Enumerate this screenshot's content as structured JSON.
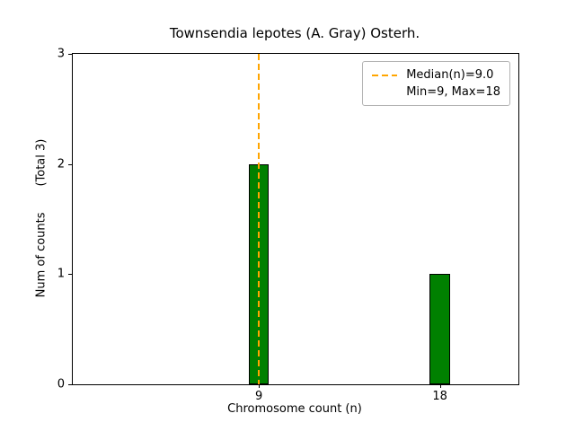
{
  "chart_data": {
    "type": "bar",
    "title": "Townsendia lepotes (A. Gray) Osterh.",
    "xlabel": "Chromosome count (n)",
    "ylabel": "Num of counts       (Total 3)",
    "categories": [
      9,
      18
    ],
    "values": [
      2,
      1
    ],
    "bar_width": 1.0,
    "bar_color": "#008000",
    "bar_edge_color": "#000000",
    "xlim": [
      -0.25,
      21.9
    ],
    "ylim": [
      0,
      3
    ],
    "xticks": [
      9,
      18
    ],
    "yticks": [
      0,
      1,
      2,
      3
    ],
    "grid": false,
    "median_line": {
      "x": 9.0,
      "color": "#ffa500",
      "style": "dashed"
    },
    "legend": {
      "position": "upper right",
      "entries": [
        "Median(n)=9.0",
        "Min=9, Max=18"
      ]
    }
  }
}
